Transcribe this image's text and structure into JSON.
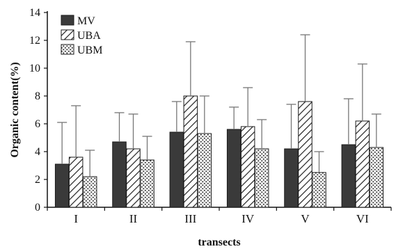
{
  "chart_data": {
    "type": "bar",
    "categories": [
      "I",
      "II",
      "III",
      "IV",
      "V",
      "VI"
    ],
    "series": [
      {
        "name": "MV",
        "pattern": "solid",
        "values": [
          3.1,
          4.7,
          5.4,
          5.6,
          4.2,
          4.5
        ],
        "err": [
          3.0,
          2.1,
          2.2,
          1.6,
          3.2,
          3.3
        ]
      },
      {
        "name": "UBA",
        "pattern": "hatch",
        "values": [
          3.6,
          4.2,
          8.0,
          5.8,
          7.6,
          6.2
        ],
        "err": [
          3.7,
          2.5,
          3.9,
          2.8,
          4.8,
          4.1
        ]
      },
      {
        "name": "UBM",
        "pattern": "dotted",
        "values": [
          2.2,
          3.4,
          5.3,
          4.2,
          2.5,
          4.3
        ],
        "err": [
          1.9,
          1.7,
          2.7,
          2.1,
          1.5,
          2.4
        ]
      }
    ],
    "title": "",
    "xlabel": "transects",
    "ylabel": "Organic content(%)",
    "ylim": [
      0,
      14
    ],
    "yticks": [
      0,
      2,
      4,
      6,
      8,
      10,
      12,
      14
    ],
    "grid": false,
    "legend_position": "top-left",
    "colors": {
      "solid": "#3a3a3a",
      "stroke": "#1a1a1a",
      "error": "#777777"
    }
  }
}
